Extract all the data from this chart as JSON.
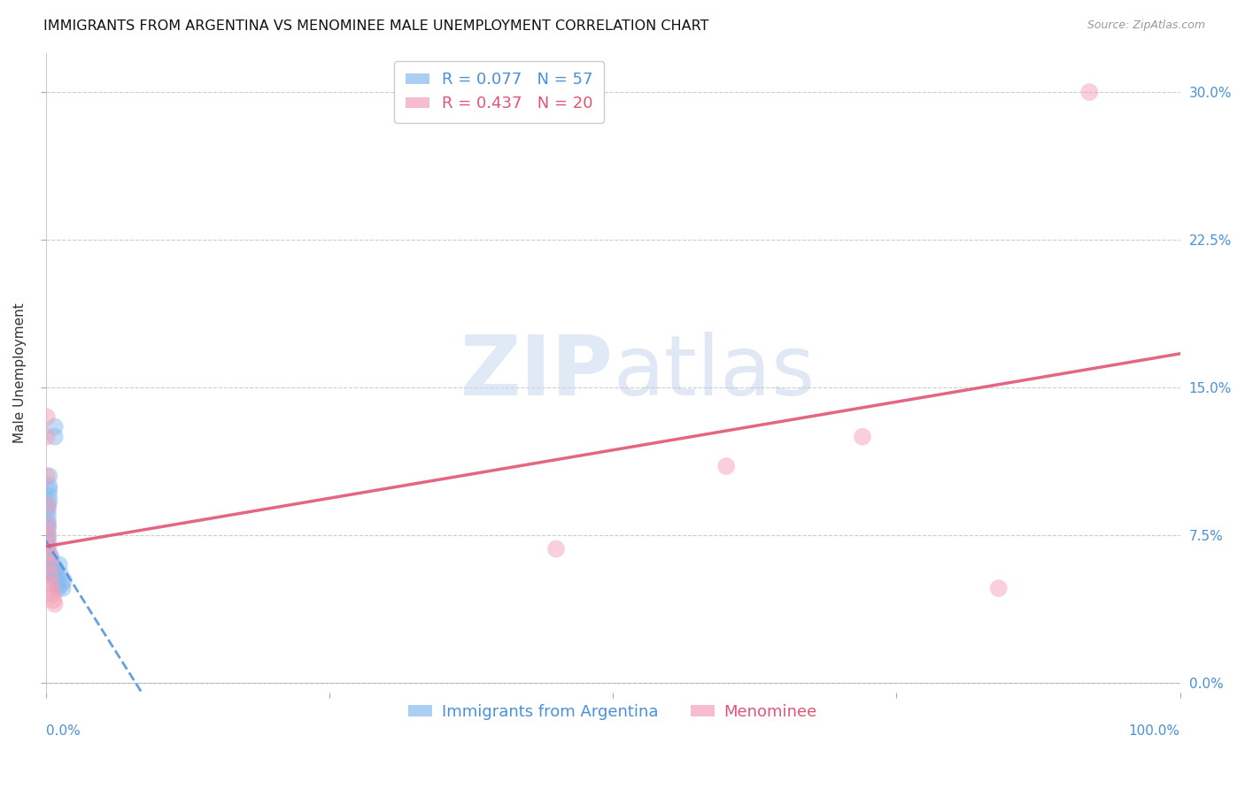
{
  "title": "IMMIGRANTS FROM ARGENTINA VS MENOMINEE MALE UNEMPLOYMENT CORRELATION CHART",
  "source": "Source: ZipAtlas.com",
  "ylabel": "Male Unemployment",
  "ytick_labels": [
    "0.0%",
    "7.5%",
    "15.0%",
    "22.5%",
    "30.0%"
  ],
  "ytick_values": [
    0.0,
    0.075,
    0.15,
    0.225,
    0.3
  ],
  "xlim": [
    0.0,
    1.0
  ],
  "ylim": [
    -0.005,
    0.32
  ],
  "legend_r1": "R = 0.077   N = 57",
  "legend_r2": "R = 0.437   N = 20",
  "watermark_zip": "ZIP",
  "watermark_atlas": "atlas",
  "color_blue": "#88bbee",
  "color_pink": "#f4a0b8",
  "color_blue_line": "#4a90d9",
  "color_pink_line": "#e05575",
  "color_axis_labels": "#4a90d9",
  "argentina_x": [
    0.0005,
    0.001,
    0.001,
    0.001,
    0.001,
    0.001,
    0.001,
    0.001,
    0.001,
    0.001,
    0.001,
    0.001,
    0.001,
    0.001,
    0.001,
    0.001,
    0.001,
    0.001,
    0.001,
    0.001,
    0.001,
    0.001,
    0.002,
    0.002,
    0.002,
    0.002,
    0.002,
    0.002,
    0.002,
    0.002,
    0.003,
    0.003,
    0.003,
    0.003,
    0.003,
    0.004,
    0.004,
    0.004,
    0.005,
    0.005,
    0.005,
    0.006,
    0.006,
    0.007,
    0.007,
    0.008,
    0.008,
    0.009,
    0.009,
    0.01,
    0.01,
    0.011,
    0.012,
    0.013,
    0.014,
    0.015,
    0.016
  ],
  "argentina_y": [
    0.06,
    0.055,
    0.058,
    0.06,
    0.062,
    0.063,
    0.065,
    0.067,
    0.068,
    0.07,
    0.058,
    0.06,
    0.062,
    0.063,
    0.065,
    0.068,
    0.07,
    0.072,
    0.055,
    0.057,
    0.059,
    0.061,
    0.09,
    0.088,
    0.085,
    0.082,
    0.08,
    0.078,
    0.075,
    0.073,
    0.095,
    0.092,
    0.1,
    0.098,
    0.105,
    0.06,
    0.062,
    0.065,
    0.058,
    0.06,
    0.063,
    0.057,
    0.06,
    0.055,
    0.058,
    0.13,
    0.125,
    0.055,
    0.058,
    0.05,
    0.053,
    0.048,
    0.06,
    0.055,
    0.05,
    0.048,
    0.052
  ],
  "menominee_x": [
    0.001,
    0.001,
    0.001,
    0.002,
    0.002,
    0.002,
    0.003,
    0.003,
    0.004,
    0.004,
    0.005,
    0.005,
    0.006,
    0.007,
    0.008,
    0.45,
    0.6,
    0.72,
    0.84,
    0.92
  ],
  "menominee_y": [
    0.135,
    0.125,
    0.105,
    0.09,
    0.08,
    0.075,
    0.07,
    0.065,
    0.06,
    0.055,
    0.05,
    0.048,
    0.045,
    0.042,
    0.04,
    0.068,
    0.11,
    0.125,
    0.048,
    0.3
  ],
  "grid_color": "#cccccc",
  "background_color": "#ffffff",
  "title_fontsize": 11.5,
  "source_fontsize": 9,
  "tick_label_fontsize": 11,
  "axis_label_fontsize": 11,
  "legend_fontsize": 13
}
